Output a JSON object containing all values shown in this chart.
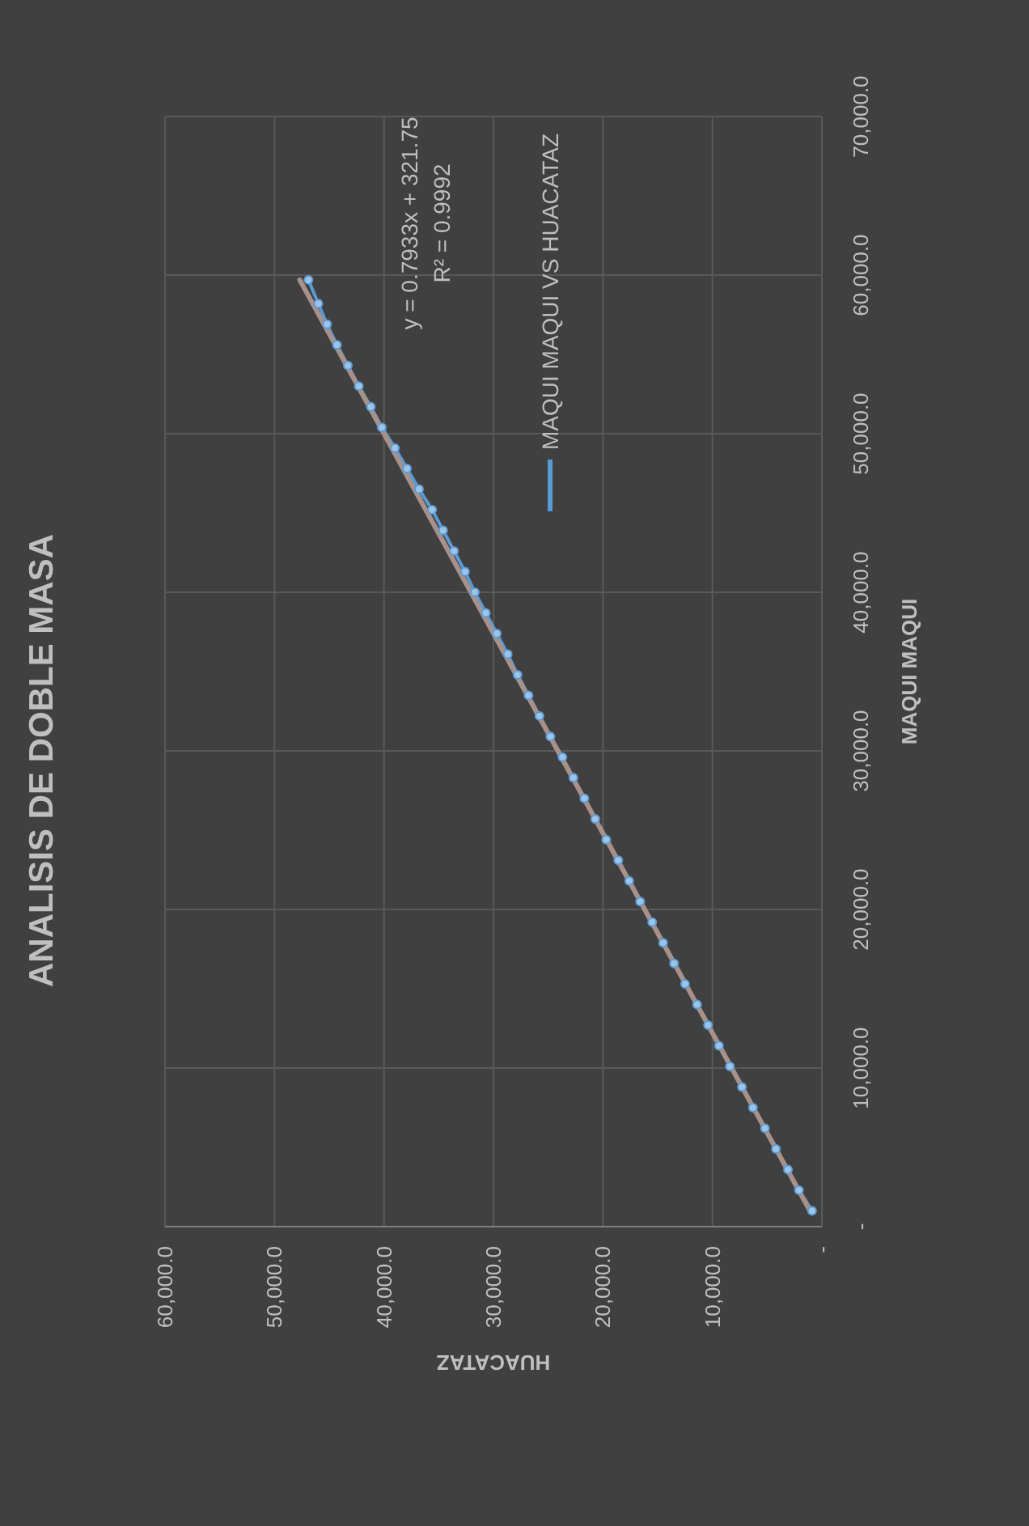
{
  "chart_data": {
    "type": "line",
    "title": "ANALISIS DE DOBLE MASA",
    "xlabel": "HUACATAZ",
    "ylabel": "MAQUI MAQUI",
    "annotations": [
      "y = 0.7933x + 321.75",
      "R² = 0.9992"
    ],
    "series": [
      {
        "name": "MAQUI MAQUI VS HUACATAZ",
        "color": "#5b9bd5",
        "marker": "circle",
        "x": [
          900,
          2100,
          3100,
          4200,
          5200,
          6300,
          7300,
          8400,
          9400,
          10400,
          11400,
          12500,
          13500,
          14500,
          15500,
          16600,
          17600,
          18600,
          19700,
          20700,
          21700,
          22700,
          23700,
          24800,
          25800,
          26800,
          27800,
          28700,
          29700,
          30700,
          31700,
          32600,
          33600,
          34600,
          35600,
          36800,
          37900,
          39000,
          40200,
          41200,
          42300,
          43300,
          44300,
          45200,
          46000,
          46900
        ],
        "values": [
          1000,
          2300,
          3600,
          4900,
          6200,
          7500,
          8800,
          10100,
          11400,
          12700,
          14000,
          15300,
          16600,
          17900,
          19200,
          20500,
          21800,
          23100,
          24400,
          25700,
          27000,
          28300,
          29600,
          30900,
          32200,
          33500,
          34800,
          36100,
          37400,
          38700,
          40000,
          41300,
          42600,
          43900,
          45200,
          46500,
          47800,
          49100,
          50400,
          51700,
          53000,
          54300,
          55600,
          56900,
          58200,
          59700
        ]
      },
      {
        "color": "#a8918a",
        "marker": "none",
        "x": [
          1100,
          47700
        ],
        "values": [
          1000,
          59700
        ]
      }
    ],
    "xlim": [
      60000,
      0
    ],
    "xticks": [
      {
        "value": 0,
        "label": "-"
      },
      {
        "value": 10000,
        "label": "10,000.0"
      },
      {
        "value": 20000,
        "label": "20,000.0"
      },
      {
        "value": 30000,
        "label": "30,000.0"
      },
      {
        "value": 40000,
        "label": "40,000.0"
      },
      {
        "value": 50000,
        "label": "50,000.0"
      },
      {
        "value": 60000,
        "label": "60,000.0"
      }
    ],
    "ylim": [
      0,
      70000
    ],
    "yticks": [
      {
        "value": 0,
        "label": "-"
      },
      {
        "value": 10000,
        "label": "10,000.0"
      },
      {
        "value": 20000,
        "label": "20,000.0"
      },
      {
        "value": 30000,
        "label": "30,000.0"
      },
      {
        "value": 40000,
        "label": "40,000.0"
      },
      {
        "value": 50000,
        "label": "50,000.0"
      },
      {
        "value": 60000,
        "label": "60,000.0"
      },
      {
        "value": 70000,
        "label": "70,000.0"
      }
    ],
    "grid": true,
    "legend": "top right"
  }
}
